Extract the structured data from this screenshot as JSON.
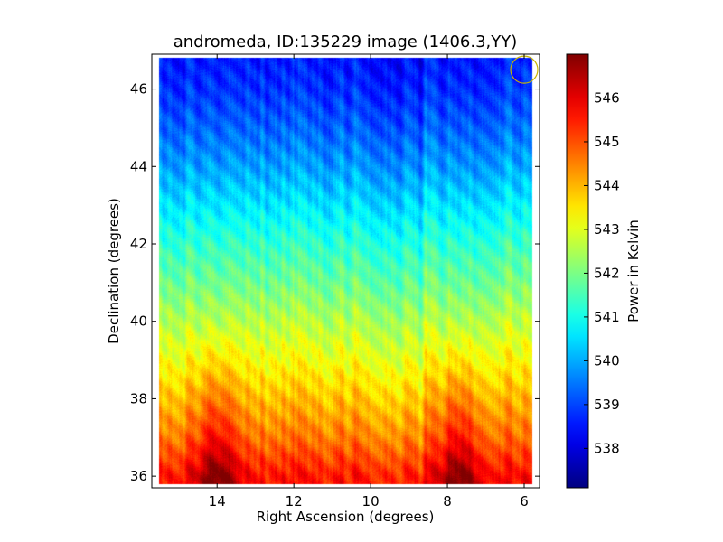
{
  "chart_data": {
    "type": "heatmap",
    "title": "andromeda, ID:135229 image (1406.3,YY)",
    "xlabel": "Right Ascension (degrees)",
    "ylabel": "Declination (degrees)",
    "colorbar_label": "Power in Kelvin",
    "colormap": "jet",
    "x_inverted": true,
    "xlim": [
      15.7,
      5.6
    ],
    "ylim": [
      35.7,
      46.9
    ],
    "x_ticks": [
      14,
      12,
      10,
      8,
      6
    ],
    "x_tick_labels": [
      "14",
      "12",
      "10",
      "8",
      "6"
    ],
    "y_ticks": [
      36,
      38,
      40,
      42,
      44,
      46
    ],
    "y_tick_labels": [
      "36",
      "38",
      "40",
      "42",
      "44",
      "46"
    ],
    "data_extent": {
      "ra": [
        15.5,
        5.8
      ],
      "dec": [
        35.8,
        46.8
      ]
    },
    "colorbar_range": [
      537.1,
      547.0
    ],
    "colorbar_ticks": [
      538,
      539,
      540,
      541,
      542,
      543,
      544,
      545,
      546
    ],
    "colorbar_tick_labels": [
      "538",
      "539",
      "540",
      "541",
      "542",
      "543",
      "544",
      "545",
      "546"
    ],
    "dec_profile": {
      "dec": [
        36.0,
        37.0,
        38.0,
        39.0,
        40.0,
        41.0,
        42.0,
        43.0,
        44.0,
        45.0,
        46.0,
        46.7
      ],
      "mean_kelvin": [
        545.6,
        544.6,
        543.9,
        543.2,
        542.6,
        541.9,
        541.3,
        540.6,
        539.9,
        539.3,
        538.8,
        538.6
      ]
    },
    "hot_columns_ra": [
      14.0,
      7.7
    ],
    "beam_marker": {
      "ra": 6.0,
      "dec": 46.5,
      "color": "#c8b400"
    }
  }
}
